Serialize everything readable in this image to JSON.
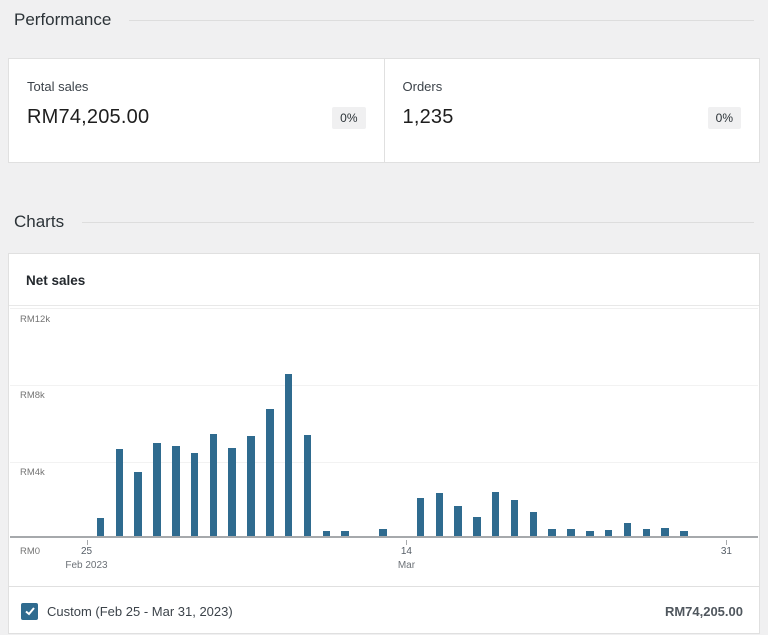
{
  "performance": {
    "title": "Performance",
    "cards": [
      {
        "label": "Total sales",
        "value": "RM74,205.00",
        "delta": "0%"
      },
      {
        "label": "Orders",
        "value": "1,235",
        "delta": "0%"
      }
    ]
  },
  "charts_section": {
    "title": "Charts"
  },
  "chart_data": {
    "type": "bar",
    "title": "Net sales",
    "currency": "RM",
    "ylim": [
      0,
      12000
    ],
    "grid": true,
    "bar_color": "#2f6b8f",
    "y_ticks": [
      {
        "label": "RM12k",
        "value": 12000
      },
      {
        "label": "RM8k",
        "value": 8000
      },
      {
        "label": "RM4k",
        "value": 4000
      },
      {
        "label": "RM0",
        "value": 0
      }
    ],
    "x": [
      "Feb 25",
      "Feb 26",
      "Feb 27",
      "Feb 28",
      "Mar 1",
      "Mar 2",
      "Mar 3",
      "Mar 4",
      "Mar 5",
      "Mar 6",
      "Mar 7",
      "Mar 8",
      "Mar 9",
      "Mar 10",
      "Mar 11",
      "Mar 12",
      "Mar 13",
      "Mar 14",
      "Mar 15",
      "Mar 16",
      "Mar 17",
      "Mar 18",
      "Mar 19",
      "Mar 20",
      "Mar 21",
      "Mar 22",
      "Mar 23",
      "Mar 24",
      "Mar 25",
      "Mar 26",
      "Mar 27",
      "Mar 28",
      "Mar 29",
      "Mar 30",
      "Mar 31"
    ],
    "values": [
      950,
      4550,
      3350,
      4850,
      4700,
      4350,
      5300,
      4600,
      5200,
      6650,
      8450,
      5250,
      250,
      250,
      0,
      350,
      0,
      2000,
      2250,
      1550,
      1000,
      2300,
      1900,
      1250,
      350,
      350,
      250,
      300,
      655,
      350,
      400,
      250,
      0,
      0,
      0
    ],
    "x_axis_ticks": [
      {
        "index": 0,
        "day": "25",
        "month": "Feb 2023"
      },
      {
        "index": 17,
        "day": "14",
        "month": "Mar"
      },
      {
        "index": 34,
        "day": "31",
        "month": ""
      }
    ],
    "legend": {
      "checked": true,
      "label": "Custom (Feb 25 - Mar 31, 2023)",
      "total": "RM74,205.00",
      "position": "bottom"
    }
  }
}
